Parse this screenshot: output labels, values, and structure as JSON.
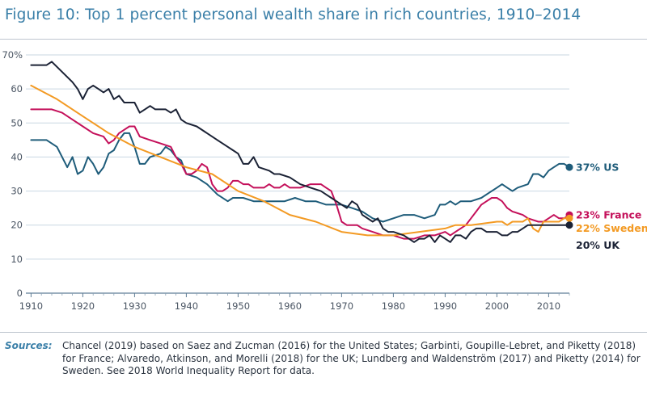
{
  "figure": {
    "title": "Figure 10: Top 1 percent personal wealth share in rich countries, 1910–2014"
  },
  "sources": {
    "label": "Sources:",
    "text": "Chancel (2019) based on Saez and Zucman (2016) for the United States; Garbinti, Goupille-Lebret, and Piketty (2018) for France; Alvaredo, Atkinson, and Morelli (2018) for the UK; Lundberg and Waldenström (2017) and Piketty (2014) for Sweden. See 2018 World Inequality Report for data."
  },
  "chart_data": {
    "type": "line",
    "title": "Top 1 percent personal wealth share in rich countries, 1910–2014",
    "xlabel": "",
    "ylabel": "",
    "xlim": [
      1909,
      2014
    ],
    "ylim": [
      0,
      70
    ],
    "x_ticks": [
      1910,
      1920,
      1930,
      1940,
      1950,
      1960,
      1970,
      1980,
      1990,
      2000,
      2010
    ],
    "y_ticks": [
      0,
      10,
      20,
      30,
      40,
      50,
      60,
      70
    ],
    "y_tick_labels": [
      "0",
      "10",
      "20",
      "30",
      "40",
      "50",
      "60",
      "70%"
    ],
    "grid": "horizontal",
    "series": [
      {
        "name": "US",
        "color": "#1e5c7a",
        "end_label": "37% US",
        "points": [
          [
            1910,
            45
          ],
          [
            1913,
            45
          ],
          [
            1915,
            43
          ],
          [
            1917,
            37
          ],
          [
            1918,
            40
          ],
          [
            1919,
            35
          ],
          [
            1920,
            36
          ],
          [
            1921,
            40
          ],
          [
            1922,
            38
          ],
          [
            1923,
            35
          ],
          [
            1924,
            37
          ],
          [
            1925,
            41
          ],
          [
            1926,
            42
          ],
          [
            1927,
            45
          ],
          [
            1928,
            47
          ],
          [
            1929,
            47
          ],
          [
            1930,
            43
          ],
          [
            1931,
            38
          ],
          [
            1932,
            38
          ],
          [
            1933,
            40
          ],
          [
            1935,
            41
          ],
          [
            1936,
            43
          ],
          [
            1937,
            42
          ],
          [
            1938,
            40
          ],
          [
            1939,
            39
          ],
          [
            1940,
            35
          ],
          [
            1942,
            34
          ],
          [
            1944,
            32
          ],
          [
            1946,
            29
          ],
          [
            1948,
            27
          ],
          [
            1949,
            28
          ],
          [
            1951,
            28
          ],
          [
            1953,
            27
          ],
          [
            1955,
            27
          ],
          [
            1957,
            27
          ],
          [
            1959,
            27
          ],
          [
            1961,
            28
          ],
          [
            1963,
            27
          ],
          [
            1965,
            27
          ],
          [
            1967,
            26
          ],
          [
            1970,
            26
          ],
          [
            1972,
            25
          ],
          [
            1974,
            24
          ],
          [
            1976,
            22
          ],
          [
            1978,
            21
          ],
          [
            1980,
            22
          ],
          [
            1982,
            23
          ],
          [
            1984,
            23
          ],
          [
            1986,
            22
          ],
          [
            1988,
            23
          ],
          [
            1989,
            26
          ],
          [
            1990,
            26
          ],
          [
            1991,
            27
          ],
          [
            1992,
            26
          ],
          [
            1993,
            27
          ],
          [
            1995,
            27
          ],
          [
            1997,
            28
          ],
          [
            1999,
            30
          ],
          [
            2000,
            31
          ],
          [
            2001,
            32
          ],
          [
            2002,
            31
          ],
          [
            2003,
            30
          ],
          [
            2004,
            31
          ],
          [
            2006,
            32
          ],
          [
            2007,
            35
          ],
          [
            2008,
            35
          ],
          [
            2009,
            34
          ],
          [
            2010,
            36
          ],
          [
            2011,
            37
          ],
          [
            2012,
            38
          ],
          [
            2013,
            38
          ],
          [
            2014,
            37
          ]
        ]
      },
      {
        "name": "France",
        "color": "#c4105a",
        "end_label": "23% France",
        "points": [
          [
            1910,
            54
          ],
          [
            1914,
            54
          ],
          [
            1916,
            53
          ],
          [
            1918,
            51
          ],
          [
            1920,
            49
          ],
          [
            1922,
            47
          ],
          [
            1924,
            46
          ],
          [
            1925,
            44
          ],
          [
            1926,
            45
          ],
          [
            1927,
            47
          ],
          [
            1928,
            48
          ],
          [
            1929,
            49
          ],
          [
            1930,
            49
          ],
          [
            1931,
            46
          ],
          [
            1933,
            45
          ],
          [
            1935,
            44
          ],
          [
            1937,
            43
          ],
          [
            1938,
            40
          ],
          [
            1939,
            38
          ],
          [
            1940,
            35
          ],
          [
            1941,
            35
          ],
          [
            1942,
            36
          ],
          [
            1943,
            38
          ],
          [
            1944,
            37
          ],
          [
            1945,
            32
          ],
          [
            1946,
            30
          ],
          [
            1947,
            30
          ],
          [
            1948,
            31
          ],
          [
            1949,
            33
          ],
          [
            1950,
            33
          ],
          [
            1951,
            32
          ],
          [
            1952,
            32
          ],
          [
            1953,
            31
          ],
          [
            1955,
            31
          ],
          [
            1956,
            32
          ],
          [
            1957,
            31
          ],
          [
            1958,
            31
          ],
          [
            1959,
            32
          ],
          [
            1960,
            31
          ],
          [
            1962,
            31
          ],
          [
            1964,
            32
          ],
          [
            1966,
            32
          ],
          [
            1967,
            31
          ],
          [
            1968,
            30
          ],
          [
            1969,
            26
          ],
          [
            1970,
            21
          ],
          [
            1971,
            20
          ],
          [
            1973,
            20
          ],
          [
            1974,
            19
          ],
          [
            1976,
            18
          ],
          [
            1978,
            17
          ],
          [
            1980,
            17
          ],
          [
            1982,
            16
          ],
          [
            1984,
            16
          ],
          [
            1986,
            17
          ],
          [
            1988,
            17
          ],
          [
            1990,
            18
          ],
          [
            1991,
            17
          ],
          [
            1992,
            18
          ],
          [
            1993,
            19
          ],
          [
            1994,
            20
          ],
          [
            1995,
            22
          ],
          [
            1996,
            24
          ],
          [
            1997,
            26
          ],
          [
            1998,
            27
          ],
          [
            1999,
            28
          ],
          [
            2000,
            28
          ],
          [
            2001,
            27
          ],
          [
            2002,
            25
          ],
          [
            2003,
            24
          ],
          [
            2005,
            23
          ],
          [
            2006,
            22
          ],
          [
            2008,
            21
          ],
          [
            2009,
            21
          ],
          [
            2010,
            22
          ],
          [
            2011,
            23
          ],
          [
            2012,
            22
          ],
          [
            2013,
            22
          ],
          [
            2014,
            23
          ]
        ]
      },
      {
        "name": "Sweden",
        "color": "#f39a23",
        "end_label": "22% Sweden",
        "points": [
          [
            1910,
            61
          ],
          [
            1915,
            57
          ],
          [
            1920,
            52
          ],
          [
            1925,
            47
          ],
          [
            1930,
            43
          ],
          [
            1935,
            40
          ],
          [
            1940,
            37
          ],
          [
            1945,
            35
          ],
          [
            1950,
            30
          ],
          [
            1955,
            27
          ],
          [
            1960,
            23
          ],
          [
            1965,
            21
          ],
          [
            1970,
            18
          ],
          [
            1975,
            17
          ],
          [
            1980,
            17
          ],
          [
            1985,
            18
          ],
          [
            1990,
            19
          ],
          [
            1992,
            20
          ],
          [
            1995,
            20
          ],
          [
            2000,
            21
          ],
          [
            2001,
            21
          ],
          [
            2002,
            20
          ],
          [
            2003,
            21
          ],
          [
            2005,
            21
          ],
          [
            2006,
            22
          ],
          [
            2007,
            19
          ],
          [
            2008,
            18
          ],
          [
            2009,
            21
          ],
          [
            2010,
            21
          ],
          [
            2011,
            21
          ],
          [
            2012,
            21
          ],
          [
            2013,
            22
          ],
          [
            2014,
            22
          ]
        ]
      },
      {
        "name": "UK",
        "color": "#1b2235",
        "end_label": "20% UK",
        "points": [
          [
            1910,
            67
          ],
          [
            1913,
            67
          ],
          [
            1914,
            68
          ],
          [
            1916,
            65
          ],
          [
            1918,
            62
          ],
          [
            1919,
            60
          ],
          [
            1920,
            57
          ],
          [
            1921,
            60
          ],
          [
            1922,
            61
          ],
          [
            1923,
            60
          ],
          [
            1924,
            59
          ],
          [
            1925,
            60
          ],
          [
            1926,
            57
          ],
          [
            1927,
            58
          ],
          [
            1928,
            56
          ],
          [
            1930,
            56
          ],
          [
            1931,
            53
          ],
          [
            1932,
            54
          ],
          [
            1933,
            55
          ],
          [
            1934,
            54
          ],
          [
            1936,
            54
          ],
          [
            1937,
            53
          ],
          [
            1938,
            54
          ],
          [
            1939,
            51
          ],
          [
            1940,
            50
          ],
          [
            1942,
            49
          ],
          [
            1944,
            47
          ],
          [
            1946,
            45
          ],
          [
            1948,
            43
          ],
          [
            1949,
            42
          ],
          [
            1950,
            41
          ],
          [
            1951,
            38
          ],
          [
            1952,
            38
          ],
          [
            1953,
            40
          ],
          [
            1954,
            37
          ],
          [
            1956,
            36
          ],
          [
            1957,
            35
          ],
          [
            1958,
            35
          ],
          [
            1960,
            34
          ],
          [
            1962,
            32
          ],
          [
            1964,
            31
          ],
          [
            1966,
            30
          ],
          [
            1967,
            29
          ],
          [
            1968,
            28
          ],
          [
            1969,
            27
          ],
          [
            1970,
            26
          ],
          [
            1971,
            25
          ],
          [
            1972,
            27
          ],
          [
            1973,
            26
          ],
          [
            1974,
            23
          ],
          [
            1976,
            21
          ],
          [
            1977,
            22
          ],
          [
            1978,
            19
          ],
          [
            1979,
            18
          ],
          [
            1980,
            18
          ],
          [
            1982,
            17
          ],
          [
            1983,
            16
          ],
          [
            1984,
            15
          ],
          [
            1985,
            16
          ],
          [
            1986,
            16
          ],
          [
            1987,
            17
          ],
          [
            1988,
            15
          ],
          [
            1989,
            17
          ],
          [
            1990,
            16
          ],
          [
            1991,
            15
          ],
          [
            1992,
            17
          ],
          [
            1993,
            17
          ],
          [
            1994,
            16
          ],
          [
            1995,
            18
          ],
          [
            1996,
            19
          ],
          [
            1997,
            19
          ],
          [
            1998,
            18
          ],
          [
            1999,
            18
          ],
          [
            2000,
            18
          ],
          [
            2001,
            17
          ],
          [
            2002,
            17
          ],
          [
            2003,
            18
          ],
          [
            2004,
            18
          ],
          [
            2005,
            19
          ],
          [
            2006,
            20
          ],
          [
            2008,
            20
          ],
          [
            2010,
            20
          ],
          [
            2012,
            20
          ],
          [
            2014,
            20
          ]
        ]
      }
    ]
  }
}
